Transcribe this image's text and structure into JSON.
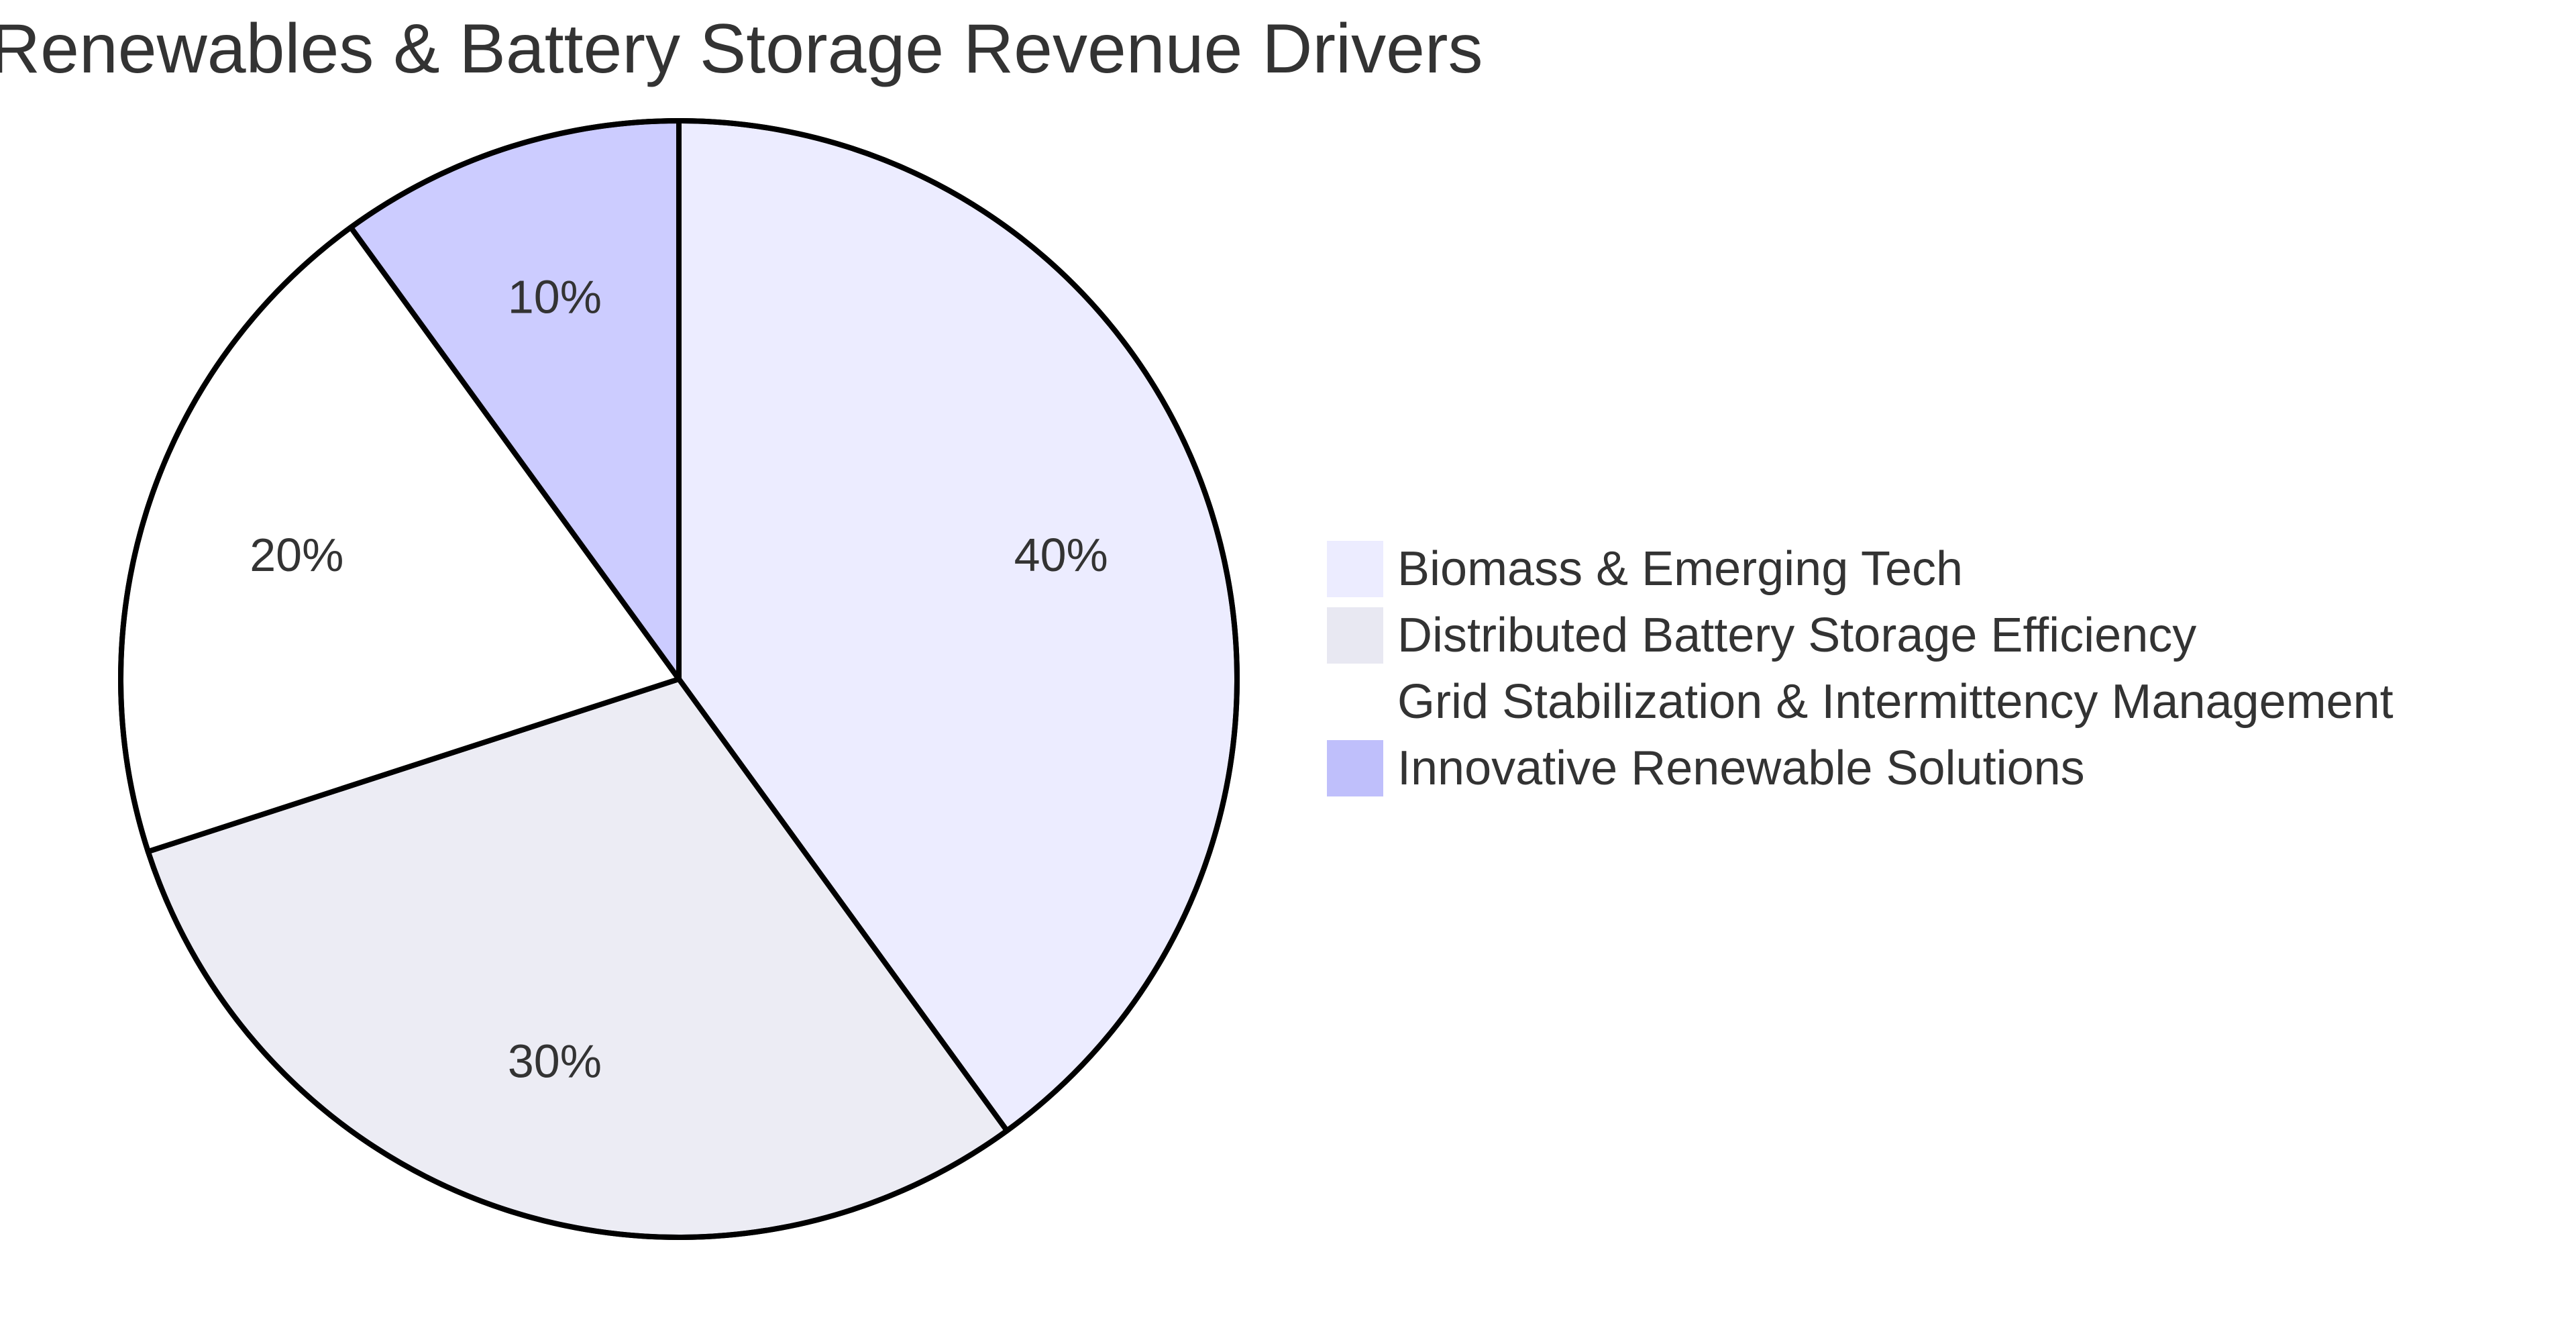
{
  "chart_data": {
    "type": "pie",
    "title": "Renewables & Battery Storage Revenue Drivers",
    "slices": [
      {
        "label": "Biomass & Emerging Tech",
        "value": 40,
        "display": "40%",
        "color": "#ECECFF"
      },
      {
        "label": "Distributed Battery Storage Efficiency",
        "value": 30,
        "display": "30%",
        "color": "#ECECF4"
      },
      {
        "label": "Grid Stabilization & Intermittency Management",
        "value": 20,
        "display": "20%",
        "color": "#FFFFFF"
      },
      {
        "label": "Innovative Renewable Solutions",
        "value": 10,
        "display": "10%",
        "color": "#CCCCFF"
      }
    ],
    "legend": {
      "position": "right",
      "items": [
        {
          "label": "Biomass & Emerging Tech",
          "color": "#ECECFF"
        },
        {
          "label": "Distributed Battery Storage Efficiency",
          "color": "#E8E8F2"
        },
        {
          "label": "Grid Stabilization & Intermittency Management",
          "color": "#FFFFFF"
        },
        {
          "label": "Innovative Renewable Solutions",
          "color": "#BFBFFB"
        }
      ]
    }
  }
}
